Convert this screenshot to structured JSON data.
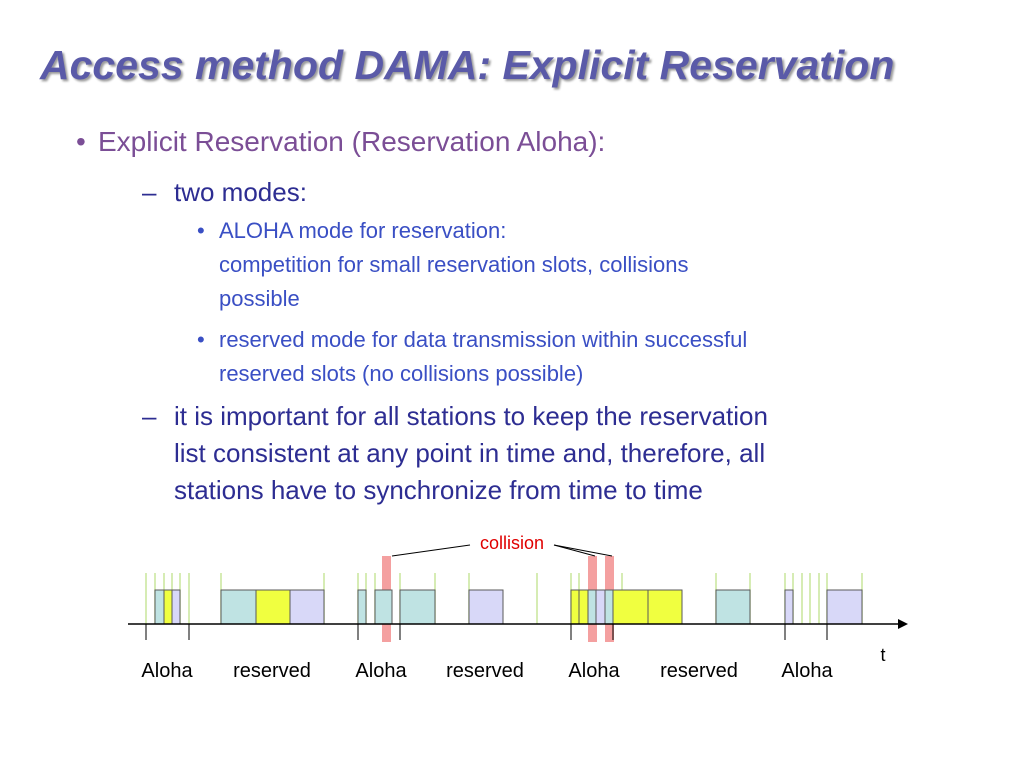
{
  "title": "Access method DAMA: Explicit Reservation",
  "bullets": {
    "main": "Explicit Reservation (Reservation Aloha):",
    "modes_heading": "two modes:",
    "mode_aloha_line1": "ALOHA mode for reservation:",
    "mode_aloha_line2": "competition for small reservation slots, collisions",
    "mode_aloha_line3": "possible",
    "mode_reserved_line1": "reserved mode for data transmission within successful",
    "mode_reserved_line2": "reserved slots (no collisions possible)",
    "sync_line1": "it is important for all stations to keep the reservation",
    "sync_line2": "list consistent at any point in time and, therefore, all",
    "sync_line3": "stations have to synchronize from time to time"
  },
  "timeline": {
    "collision_label": "collision",
    "time_label": "t",
    "phase_labels": [
      "Aloha",
      "reserved",
      "Aloha",
      "reserved",
      "Aloha",
      "reserved",
      "Aloha"
    ]
  },
  "colors": {
    "title": "#5a5aa8",
    "slot_cyan": "#bfe3e3",
    "slot_yellow": "#f0ff40",
    "slot_lavender": "#d8d8f8",
    "tick_green": "#c8e69a",
    "collision_marker": "#f4a0a0",
    "collision_text": "#e00000"
  }
}
